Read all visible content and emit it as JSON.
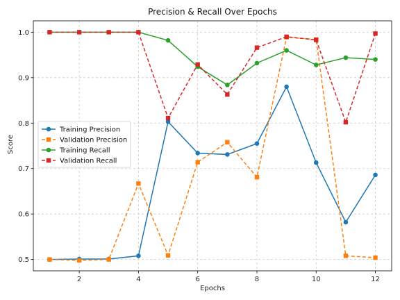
{
  "chart_data": {
    "type": "line",
    "title": "Precision & Recall Over Epochs",
    "xlabel": "Epochs",
    "ylabel": "Score",
    "x": [
      1,
      2,
      3,
      4,
      5,
      6,
      7,
      8,
      9,
      10,
      11,
      12
    ],
    "xticks": [
      2,
      4,
      6,
      8,
      10,
      12
    ],
    "yticks": [
      0.5,
      0.6,
      0.7,
      0.8,
      0.9,
      1.0
    ],
    "xlim": [
      0.45,
      12.55
    ],
    "ylim": [
      0.475,
      1.025
    ],
    "grid": true,
    "legend_position": "center-left",
    "series": [
      {
        "name": "Training Precision",
        "color": "#1f77b4",
        "linestyle": "solid",
        "marker": "circle",
        "values": [
          0.5,
          0.501,
          0.501,
          0.508,
          0.803,
          0.734,
          0.731,
          0.755,
          0.88,
          0.713,
          0.582,
          0.686
        ]
      },
      {
        "name": "Validation Precision",
        "color": "#ff7f0e",
        "linestyle": "dashed",
        "marker": "square",
        "values": [
          0.5,
          0.498,
          0.5,
          0.667,
          0.509,
          0.714,
          0.758,
          0.681,
          0.989,
          0.984,
          0.508,
          0.504
        ]
      },
      {
        "name": "Training Recall",
        "color": "#2ca02c",
        "linestyle": "solid",
        "marker": "circle",
        "values": [
          1.0,
          1.0,
          1.0,
          1.0,
          0.982,
          0.924,
          0.884,
          0.932,
          0.96,
          0.928,
          0.944,
          0.94
        ]
      },
      {
        "name": "Validation Recall",
        "color": "#d62728",
        "linestyle": "dashed",
        "marker": "square",
        "values": [
          1.0,
          1.0,
          1.0,
          1.0,
          0.811,
          0.929,
          0.863,
          0.966,
          0.99,
          0.983,
          0.802,
          0.997
        ]
      }
    ]
  }
}
